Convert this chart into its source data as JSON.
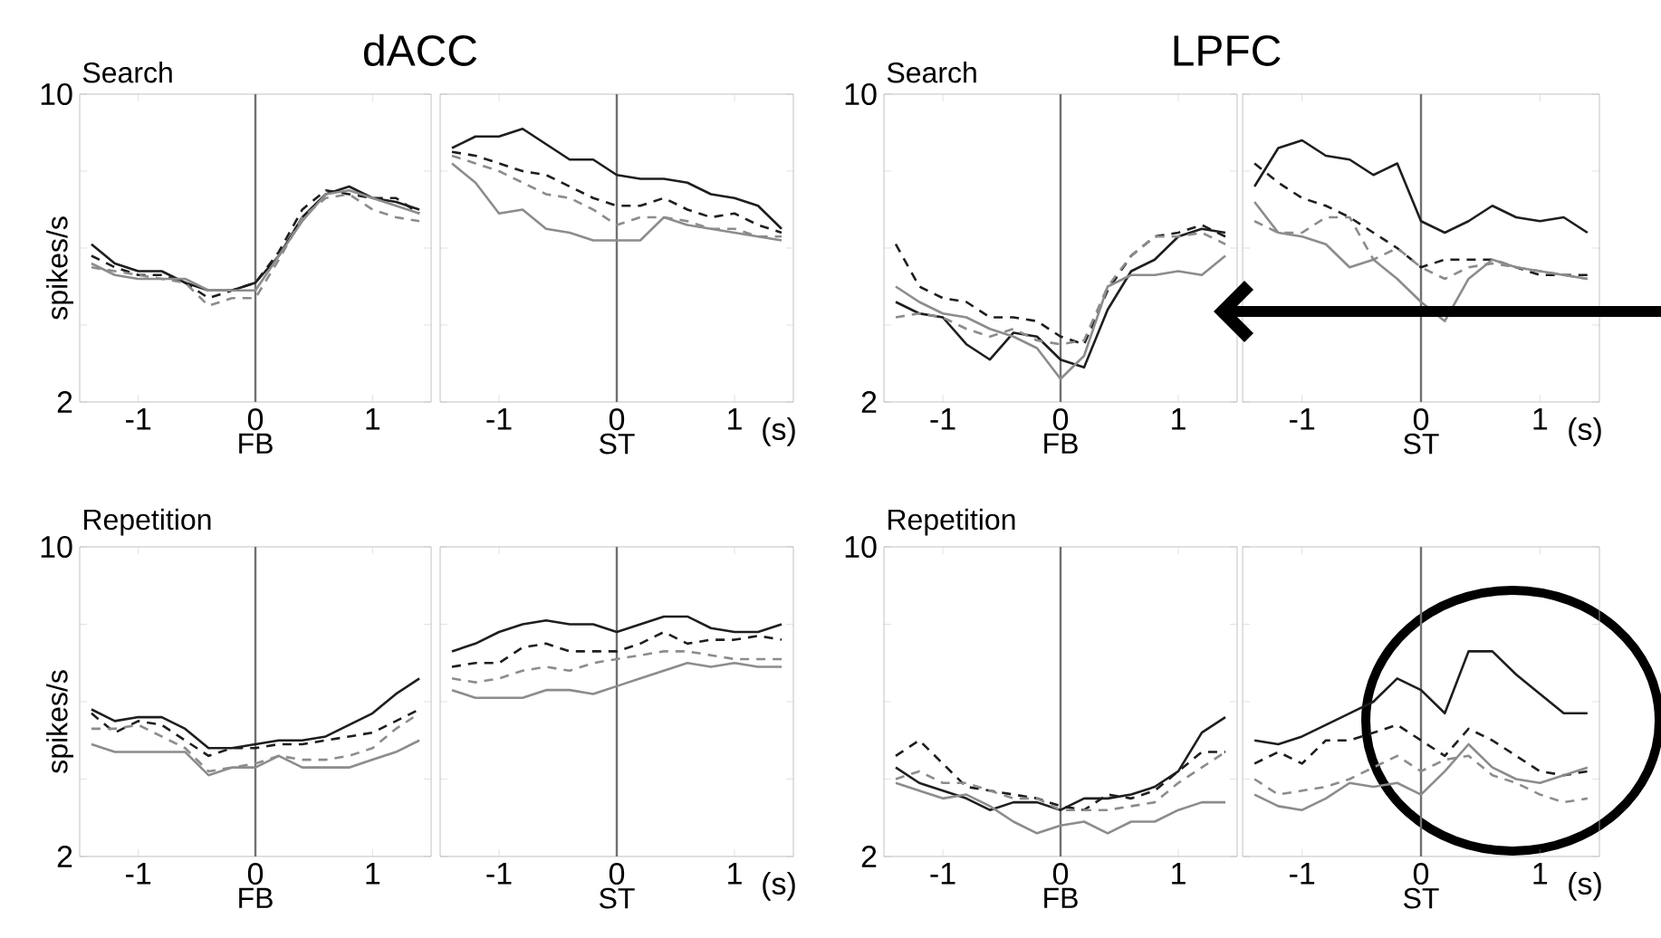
{
  "chart_data": [
    {
      "type": "line",
      "title": "dACC",
      "subtitle": "Search",
      "xlabel": "FB",
      "ylabel": "spikes/s",
      "x": [
        -1.4,
        -1.2,
        -1.0,
        -0.8,
        -0.6,
        -0.4,
        -0.2,
        0,
        0.2,
        0.4,
        0.6,
        0.8,
        1.0,
        1.2,
        1.4
      ],
      "xlim": [
        -1.5,
        1.5
      ],
      "ylim": [
        2,
        10
      ],
      "xticks": [
        -1,
        0,
        1
      ],
      "yticks": [
        2,
        {
          "value": 4,
          "label": null
        },
        {
          "value": 6,
          "label": null
        },
        {
          "value": 8,
          "label": null
        },
        10
      ],
      "ref_lines": [
        {
          "axis": "x",
          "value": 0,
          "color": "#707070"
        }
      ],
      "series": [
        {
          "color": "#1e1e1e",
          "line_style": "solid",
          "values": [
            6.1,
            5.6,
            5.4,
            5.4,
            5.1,
            4.9,
            4.9,
            5.1,
            5.8,
            6.8,
            7.4,
            7.6,
            7.3,
            7.2,
            7.0
          ]
        },
        {
          "color": "#1e1e1e",
          "line_style": "dashed",
          "values": [
            5.8,
            5.5,
            5.3,
            5.3,
            5.1,
            4.7,
            4.9,
            5.1,
            5.9,
            7.0,
            7.5,
            7.4,
            7.3,
            7.3,
            6.9
          ]
        },
        {
          "color": "#8c8c8c",
          "line_style": "dashed",
          "values": [
            5.5,
            5.4,
            5.3,
            5.2,
            5.1,
            4.5,
            4.7,
            4.7,
            5.7,
            6.8,
            7.3,
            7.4,
            7.0,
            6.8,
            6.7
          ]
        },
        {
          "color": "#8c8c8c",
          "line_style": "solid",
          "values": [
            5.6,
            5.3,
            5.2,
            5.2,
            5.2,
            4.9,
            4.9,
            4.9,
            5.8,
            6.7,
            7.4,
            7.5,
            7.3,
            7.1,
            6.9
          ]
        }
      ]
    },
    {
      "type": "line",
      "xlabel": "ST",
      "annotations": [
        "(s)"
      ],
      "tick_labels": "x",
      "x": [
        -1.4,
        -1.2,
        -1.0,
        -0.8,
        -0.6,
        -0.4,
        -0.2,
        0,
        0.2,
        0.4,
        0.6,
        0.8,
        1.0,
        1.2,
        1.4
      ],
      "xlim": [
        -1.5,
        1.5
      ],
      "ylim": [
        2,
        10
      ],
      "xticks": [
        -1,
        0,
        1
      ],
      "yticks": [
        {
          "value": 2,
          "label": null
        },
        {
          "value": 4,
          "label": null
        },
        {
          "value": 6,
          "label": null
        },
        {
          "value": 8,
          "label": null
        },
        {
          "value": 10,
          "label": null
        }
      ],
      "ref_lines": [
        {
          "axis": "x",
          "value": 0,
          "color": "#707070"
        }
      ],
      "series": [
        {
          "color": "#1e1e1e",
          "line_style": "solid",
          "values": [
            8.6,
            8.9,
            8.9,
            9.1,
            8.7,
            8.3,
            8.3,
            7.9,
            7.8,
            7.8,
            7.7,
            7.4,
            7.3,
            7.1,
            6.5
          ]
        },
        {
          "color": "#1e1e1e",
          "line_style": "dashed",
          "values": [
            8.5,
            8.4,
            8.2,
            8.0,
            7.9,
            7.6,
            7.3,
            7.1,
            7.1,
            7.3,
            7.0,
            6.8,
            6.9,
            6.6,
            6.4
          ]
        },
        {
          "color": "#8c8c8c",
          "line_style": "dashed",
          "values": [
            8.4,
            8.2,
            8.0,
            7.7,
            7.4,
            7.3,
            7.0,
            6.6,
            6.8,
            6.8,
            6.7,
            6.5,
            6.5,
            6.3,
            6.3
          ]
        },
        {
          "color": "#8c8c8c",
          "line_style": "solid",
          "values": [
            8.2,
            7.7,
            6.9,
            7.0,
            6.5,
            6.4,
            6.2,
            6.2,
            6.2,
            6.8,
            6.6,
            6.5,
            6.4,
            6.3,
            6.2
          ]
        }
      ]
    },
    {
      "type": "line",
      "title": "LPFC",
      "subtitle": "Search",
      "xlabel": "FB",
      "x": [
        -1.4,
        -1.2,
        -1.0,
        -0.8,
        -0.6,
        -0.4,
        -0.2,
        0,
        0.2,
        0.4,
        0.6,
        0.8,
        1.0,
        1.2,
        1.4
      ],
      "xlim": [
        -1.5,
        1.5
      ],
      "ylim": [
        2,
        10
      ],
      "xticks": [
        -1,
        0,
        1
      ],
      "yticks": [
        2,
        {
          "value": 4,
          "label": null
        },
        {
          "value": 6,
          "label": null
        },
        {
          "value": 8,
          "label": null
        },
        10
      ],
      "ref_lines": [
        {
          "axis": "x",
          "value": 0,
          "color": "#707070"
        }
      ],
      "series": [
        {
          "color": "#1e1e1e",
          "line_style": "solid",
          "values": [
            4.6,
            4.3,
            4.2,
            3.5,
            3.1,
            3.8,
            3.7,
            3.1,
            2.9,
            4.4,
            5.4,
            5.7,
            6.3,
            6.5,
            6.4
          ]
        },
        {
          "color": "#1e1e1e",
          "line_style": "dashed",
          "values": [
            6.1,
            5.0,
            4.7,
            4.6,
            4.2,
            4.2,
            4.1,
            3.7,
            3.5,
            4.9,
            5.8,
            6.3,
            6.4,
            6.6,
            6.3
          ]
        },
        {
          "color": "#8c8c8c",
          "line_style": "dashed",
          "values": [
            4.2,
            4.3,
            4.2,
            3.9,
            3.7,
            3.9,
            3.6,
            3.5,
            3.6,
            5.0,
            5.8,
            6.3,
            6.3,
            6.4,
            6.1
          ]
        },
        {
          "color": "#8c8c8c",
          "line_style": "solid",
          "values": [
            5.0,
            4.6,
            4.3,
            4.2,
            3.9,
            3.7,
            3.4,
            2.6,
            3.2,
            5.0,
            5.3,
            5.3,
            5.4,
            5.3,
            5.8
          ]
        }
      ]
    },
    {
      "type": "line",
      "xlabel": "ST",
      "annotations": [
        "(s)"
      ],
      "tick_labels": "x",
      "x": [
        -1.4,
        -1.2,
        -1.0,
        -0.8,
        -0.6,
        -0.4,
        -0.2,
        0,
        0.2,
        0.4,
        0.6,
        0.8,
        1.0,
        1.2,
        1.4
      ],
      "xlim": [
        -1.5,
        1.5
      ],
      "ylim": [
        2,
        10
      ],
      "xticks": [
        -1,
        0,
        1
      ],
      "yticks": [
        {
          "value": 2,
          "label": null
        },
        {
          "value": 4,
          "label": null
        },
        {
          "value": 6,
          "label": null
        },
        {
          "value": 8,
          "label": null
        },
        {
          "value": 10,
          "label": null
        }
      ],
      "ref_lines": [
        {
          "axis": "x",
          "value": 0,
          "color": "#707070"
        }
      ],
      "series": [
        {
          "color": "#1e1e1e",
          "line_style": "solid",
          "values": [
            7.6,
            8.6,
            8.8,
            8.4,
            8.3,
            7.9,
            8.2,
            6.7,
            6.4,
            6.7,
            7.1,
            6.8,
            6.7,
            6.8,
            6.4
          ]
        },
        {
          "color": "#1e1e1e",
          "line_style": "dashed",
          "values": [
            8.2,
            7.7,
            7.3,
            7.1,
            6.8,
            6.4,
            6.0,
            5.5,
            5.7,
            5.7,
            5.7,
            5.5,
            5.3,
            5.3,
            5.3
          ]
        },
        {
          "color": "#8c8c8c",
          "line_style": "dashed",
          "values": [
            6.7,
            6.4,
            6.4,
            6.8,
            6.8,
            5.7,
            6.0,
            5.5,
            5.2,
            5.5,
            5.6,
            5.5,
            5.4,
            5.3,
            5.2
          ]
        },
        {
          "color": "#8c8c8c",
          "line_style": "solid",
          "values": [
            7.2,
            6.4,
            6.3,
            6.1,
            5.5,
            5.7,
            5.2,
            4.6,
            4.1,
            5.2,
            5.7,
            5.5,
            5.4,
            5.3,
            5.2
          ]
        }
      ]
    },
    {
      "type": "line",
      "subtitle": "Repetition",
      "xlabel": "FB",
      "ylabel": "spikes/s",
      "x": [
        -1.4,
        -1.2,
        -1.0,
        -0.8,
        -0.6,
        -0.4,
        -0.2,
        0,
        0.2,
        0.4,
        0.6,
        0.8,
        1.0,
        1.2,
        1.4
      ],
      "xlim": [
        -1.5,
        1.5
      ],
      "ylim": [
        2,
        10
      ],
      "xticks": [
        -1,
        0,
        1
      ],
      "yticks": [
        2,
        {
          "value": 4,
          "label": null
        },
        {
          "value": 6,
          "label": null
        },
        {
          "value": 8,
          "label": null
        },
        10
      ],
      "ref_lines": [
        {
          "axis": "x",
          "value": 0,
          "color": "#707070"
        }
      ],
      "series": [
        {
          "color": "#1e1e1e",
          "line_style": "solid",
          "values": [
            5.8,
            5.5,
            5.6,
            5.6,
            5.3,
            4.8,
            4.8,
            4.9,
            5.0,
            5.0,
            5.1,
            5.4,
            5.7,
            6.2,
            6.6
          ]
        },
        {
          "color": "#1e1e1e",
          "line_style": "dashed",
          "values": [
            5.7,
            5.2,
            5.5,
            5.4,
            5.0,
            4.6,
            4.8,
            4.8,
            4.9,
            4.9,
            5.0,
            5.1,
            5.2,
            5.5,
            5.8
          ]
        },
        {
          "color": "#8c8c8c",
          "line_style": "dashed",
          "values": [
            5.3,
            5.3,
            5.4,
            5.1,
            4.8,
            4.2,
            4.3,
            4.4,
            4.6,
            4.5,
            4.5,
            4.6,
            4.8,
            5.3,
            5.7
          ]
        },
        {
          "color": "#8c8c8c",
          "line_style": "solid",
          "values": [
            4.9,
            4.7,
            4.7,
            4.7,
            4.7,
            4.1,
            4.3,
            4.3,
            4.6,
            4.3,
            4.3,
            4.3,
            4.5,
            4.7,
            5.0
          ]
        }
      ]
    },
    {
      "type": "line",
      "xlabel": "ST",
      "annotations": [
        "(s)"
      ],
      "tick_labels": "x",
      "x": [
        -1.4,
        -1.2,
        -1.0,
        -0.8,
        -0.6,
        -0.4,
        -0.2,
        0,
        0.2,
        0.4,
        0.6,
        0.8,
        1.0,
        1.2,
        1.4
      ],
      "xlim": [
        -1.5,
        1.5
      ],
      "ylim": [
        2,
        10
      ],
      "xticks": [
        -1,
        0,
        1
      ],
      "yticks": [
        {
          "value": 2,
          "label": null
        },
        {
          "value": 4,
          "label": null
        },
        {
          "value": 6,
          "label": null
        },
        {
          "value": 8,
          "label": null
        },
        {
          "value": 10,
          "label": null
        }
      ],
      "ref_lines": [
        {
          "axis": "x",
          "value": 0,
          "color": "#707070"
        }
      ],
      "series": [
        {
          "color": "#1e1e1e",
          "line_style": "solid",
          "values": [
            7.3,
            7.5,
            7.8,
            8.0,
            8.1,
            8.0,
            8.0,
            7.8,
            8.0,
            8.2,
            8.2,
            7.9,
            7.8,
            7.8,
            8.0
          ]
        },
        {
          "color": "#1e1e1e",
          "line_style": "dashed",
          "values": [
            6.9,
            7.0,
            7.0,
            7.4,
            7.5,
            7.3,
            7.3,
            7.3,
            7.5,
            7.8,
            7.5,
            7.6,
            7.6,
            7.7,
            7.6
          ]
        },
        {
          "color": "#8c8c8c",
          "line_style": "dashed",
          "values": [
            6.6,
            6.5,
            6.6,
            6.8,
            6.9,
            6.8,
            7.0,
            7.1,
            7.2,
            7.3,
            7.3,
            7.2,
            7.1,
            7.1,
            7.1
          ]
        },
        {
          "color": "#8c8c8c",
          "line_style": "solid",
          "values": [
            6.3,
            6.1,
            6.1,
            6.1,
            6.3,
            6.3,
            6.2,
            6.4,
            6.6,
            6.8,
            7.0,
            6.9,
            7.0,
            6.9,
            6.9
          ]
        }
      ]
    },
    {
      "type": "line",
      "subtitle": "Repetition",
      "xlabel": "FB",
      "x": [
        -1.4,
        -1.2,
        -1.0,
        -0.8,
        -0.6,
        -0.4,
        -0.2,
        0,
        0.2,
        0.4,
        0.6,
        0.8,
        1.0,
        1.2,
        1.4
      ],
      "xlim": [
        -1.5,
        1.5
      ],
      "ylim": [
        2,
        10
      ],
      "xticks": [
        -1,
        0,
        1
      ],
      "yticks": [
        2,
        {
          "value": 4,
          "label": null
        },
        {
          "value": 6,
          "label": null
        },
        {
          "value": 8,
          "label": null
        },
        10
      ],
      "ref_lines": [
        {
          "axis": "x",
          "value": 0,
          "color": "#707070"
        }
      ],
      "series": [
        {
          "color": "#1e1e1e",
          "line_style": "solid",
          "values": [
            4.3,
            3.9,
            3.7,
            3.5,
            3.2,
            3.4,
            3.4,
            3.2,
            3.5,
            3.5,
            3.6,
            3.8,
            4.2,
            5.2,
            5.6
          ]
        },
        {
          "color": "#1e1e1e",
          "line_style": "dashed",
          "values": [
            4.6,
            5.0,
            4.4,
            3.8,
            3.7,
            3.6,
            3.5,
            3.3,
            3.2,
            3.6,
            3.5,
            3.7,
            4.2,
            4.7,
            4.7
          ]
        },
        {
          "color": "#8c8c8c",
          "line_style": "dashed",
          "values": [
            4.0,
            4.2,
            3.9,
            3.9,
            3.7,
            3.5,
            3.5,
            3.2,
            3.2,
            3.2,
            3.3,
            3.4,
            3.9,
            4.3,
            4.7
          ]
        },
        {
          "color": "#8c8c8c",
          "line_style": "solid",
          "values": [
            3.9,
            3.7,
            3.5,
            3.6,
            3.3,
            2.9,
            2.6,
            2.8,
            2.9,
            2.6,
            2.9,
            2.9,
            3.2,
            3.4,
            3.4
          ]
        }
      ]
    },
    {
      "type": "line",
      "xlabel": "ST",
      "annotations": [
        "(s)"
      ],
      "tick_labels": "x",
      "x": [
        -1.4,
        -1.2,
        -1.0,
        -0.8,
        -0.6,
        -0.4,
        -0.2,
        0,
        0.2,
        0.4,
        0.6,
        0.8,
        1.0,
        1.2,
        1.4
      ],
      "xlim": [
        -1.5,
        1.5
      ],
      "ylim": [
        2,
        10
      ],
      "xticks": [
        -1,
        0,
        1
      ],
      "yticks": [
        {
          "value": 2,
          "label": null
        },
        {
          "value": 4,
          "label": null
        },
        {
          "value": 6,
          "label": null
        },
        {
          "value": 8,
          "label": null
        },
        {
          "value": 10,
          "label": null
        }
      ],
      "ref_lines": [
        {
          "axis": "x",
          "value": 0,
          "color": "#707070"
        }
      ],
      "series": [
        {
          "color": "#1e1e1e",
          "line_style": "solid",
          "values": [
            5.0,
            4.9,
            5.1,
            5.4,
            5.7,
            6.0,
            6.6,
            6.3,
            5.7,
            7.3,
            7.3,
            6.7,
            6.2,
            5.7,
            5.7
          ]
        },
        {
          "color": "#1e1e1e",
          "line_style": "dashed",
          "values": [
            4.4,
            4.7,
            4.4,
            5.0,
            5.0,
            5.2,
            5.4,
            5.0,
            4.6,
            5.3,
            5.0,
            4.6,
            4.2,
            4.1,
            4.2
          ]
        },
        {
          "color": "#8c8c8c",
          "line_style": "dashed",
          "values": [
            4.0,
            3.6,
            3.7,
            3.8,
            4.0,
            4.3,
            4.6,
            4.2,
            4.5,
            4.6,
            4.1,
            3.9,
            3.6,
            3.4,
            3.5
          ]
        },
        {
          "color": "#8c8c8c",
          "line_style": "solid",
          "values": [
            3.6,
            3.3,
            3.2,
            3.5,
            3.9,
            3.8,
            3.9,
            3.6,
            4.2,
            4.9,
            4.3,
            4.0,
            3.9,
            4.1,
            4.3
          ]
        }
      ]
    }
  ]
}
